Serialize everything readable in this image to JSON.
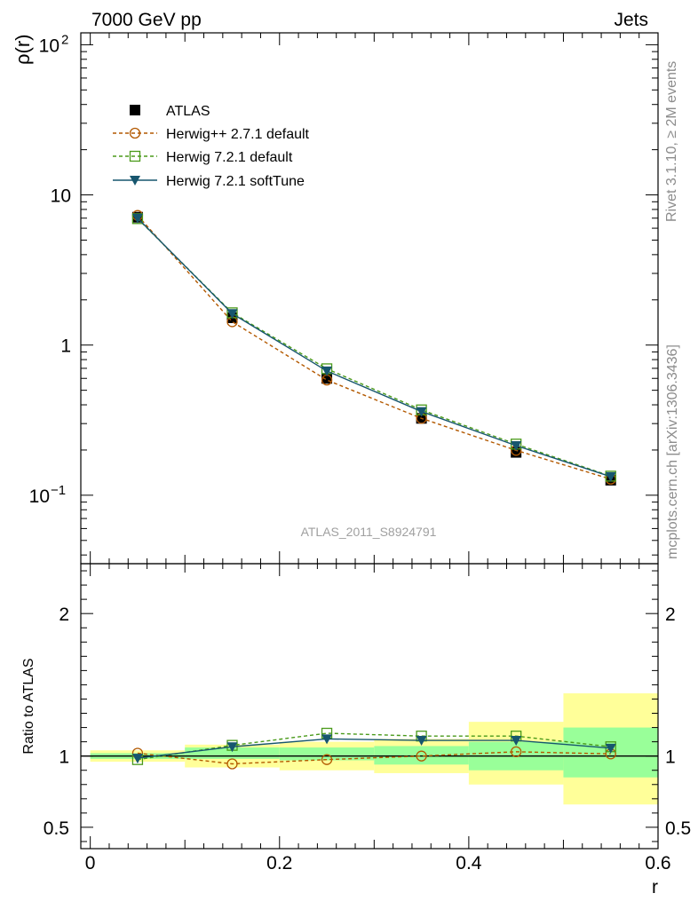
{
  "header": {
    "left": "7000 GeV pp",
    "right": "Jets"
  },
  "side_labels": {
    "top": "Rivet 3.1.10, ≥ 2M events",
    "bottom": "mcplots.cern.ch [arXiv:1306.3436]"
  },
  "watermark": "ATLAS_2011_S8924791",
  "colors": {
    "atlas": "#000000",
    "herwigpp": "#b35900",
    "herwig721": "#4a9a1a",
    "softtune": "#17566e",
    "band_outer": "#ffff99",
    "band_inner": "#99ff99"
  },
  "chart_data": [
    {
      "type": "line",
      "panel": "main",
      "ylabel": "ρ(r)",
      "yscale": "log",
      "ylim": [
        0.035,
        120
      ],
      "xlim": [
        -0.01,
        0.6
      ],
      "ytick_labels": [
        "10",
        "1"
      ],
      "ytick_values": [
        100,
        10,
        1,
        0.1
      ],
      "legend_placement": "top-left",
      "x": [
        0.05,
        0.15,
        0.25,
        0.35,
        0.45,
        0.55
      ],
      "series": [
        {
          "name": "ATLAS",
          "marker": "square-filled",
          "values": [
            7.1,
            1.52,
            0.6,
            0.325,
            0.193,
            0.126
          ]
        },
        {
          "name": "Herwig++ 2.7.1 default",
          "marker": "circle-open",
          "dashed": true,
          "values": [
            7.3,
            1.43,
            0.585,
            0.325,
            0.199,
            0.128
          ]
        },
        {
          "name": "Herwig 7.2.1 default",
          "marker": "square-open",
          "dashed": true,
          "values": [
            6.95,
            1.64,
            0.695,
            0.37,
            0.219,
            0.134
          ]
        },
        {
          "name": "Herwig 7.2.1 softTune",
          "marker": "triangle-down-filled",
          "dashed": false,
          "values": [
            7.0,
            1.62,
            0.672,
            0.361,
            0.214,
            0.133
          ]
        }
      ]
    },
    {
      "type": "line",
      "panel": "ratio",
      "ylabel": "Ratio to ATLAS",
      "xlabel": "r",
      "ylim": [
        0.35,
        2.35
      ],
      "xlim": [
        -0.01,
        0.6
      ],
      "ytick_labels": [
        "2",
        "1",
        "0.5"
      ],
      "xtick_labels": [
        "0",
        "0.2",
        "0.4",
        "0.6"
      ],
      "x": [
        0.05,
        0.15,
        0.25,
        0.35,
        0.45,
        0.55
      ],
      "bands": {
        "edges": [
          0.0,
          0.1,
          0.2,
          0.3,
          0.4,
          0.5,
          0.6
        ],
        "outer_lo": [
          0.96,
          0.92,
          0.9,
          0.88,
          0.8,
          0.66
        ],
        "outer_hi": [
          1.04,
          1.08,
          1.1,
          1.12,
          1.24,
          1.44
        ],
        "inner_lo": [
          0.98,
          0.98,
          0.97,
          0.94,
          0.9,
          0.85
        ],
        "inner_hi": [
          1.02,
          1.06,
          1.06,
          1.07,
          1.1,
          1.2
        ]
      },
      "series": [
        {
          "name": "Herwig++ 2.7.1 default",
          "values": [
            1.02,
            0.945,
            0.975,
            1.0,
            1.03,
            1.015
          ]
        },
        {
          "name": "Herwig 7.2.1 default",
          "values": [
            0.975,
            1.075,
            1.16,
            1.14,
            1.14,
            1.065
          ]
        },
        {
          "name": "Herwig 7.2.1 softTune",
          "values": [
            0.985,
            1.065,
            1.12,
            1.11,
            1.11,
            1.055
          ]
        }
      ]
    }
  ]
}
